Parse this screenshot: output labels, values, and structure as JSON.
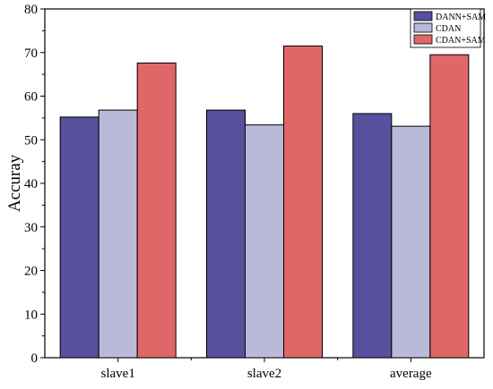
{
  "chart_data": {
    "type": "bar",
    "title": "",
    "xlabel": "",
    "ylabel": "Accuray",
    "categories": [
      "slave1",
      "slave2",
      "average"
    ],
    "series": [
      {
        "name": "DANN+SAM",
        "values": [
          55.2,
          56.8,
          56.0
        ],
        "color": "#56509e"
      },
      {
        "name": "CDAN",
        "values": [
          56.8,
          53.4,
          53.1
        ],
        "color": "#bbb9d9"
      },
      {
        "name": "CDAN+SAM",
        "values": [
          67.6,
          71.5,
          69.5
        ],
        "color": "#df6767"
      }
    ],
    "ylim": [
      0,
      80
    ],
    "yticks": [
      0,
      10,
      20,
      30,
      40,
      50,
      60,
      70,
      80
    ],
    "grid": false,
    "legend_position": "top-right"
  }
}
